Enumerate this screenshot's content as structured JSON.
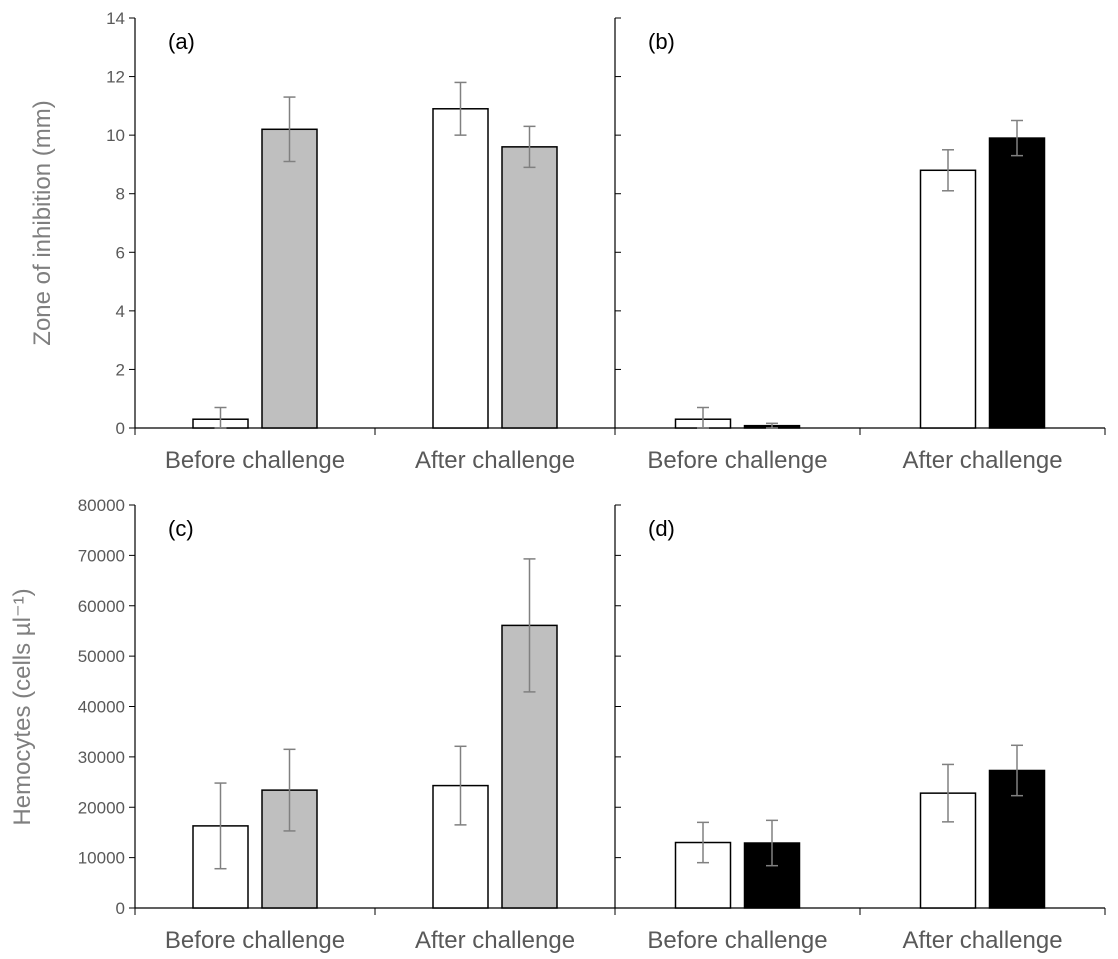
{
  "ylabel_top": "Zone of inhibition (mm)",
  "ylabel_bottom": "Hemocytes (cells µl⁻¹)",
  "chart_data": [
    {
      "panel": "(a)",
      "type": "bar",
      "categories": [
        "Before challenge",
        "After challenge"
      ],
      "ylim": [
        0,
        14
      ],
      "yticks": [
        "0",
        "2",
        "4",
        "6",
        "8",
        "10",
        "12",
        "14"
      ],
      "series": [
        {
          "color": "#ffffff",
          "values": [
            0.3,
            10.9
          ],
          "errors": [
            0.4,
            0.9
          ]
        },
        {
          "color": "#bfbfbf",
          "values": [
            10.2,
            9.6
          ],
          "errors": [
            1.1,
            0.7
          ]
        }
      ]
    },
    {
      "panel": "(b)",
      "type": "bar",
      "categories": [
        "Before challenge",
        "After challenge"
      ],
      "ylim": [
        0,
        14
      ],
      "series": [
        {
          "color": "#ffffff",
          "values": [
            0.3,
            8.8
          ],
          "errors": [
            0.4,
            0.7
          ]
        },
        {
          "color": "#000000",
          "values": [
            0.08,
            9.9
          ],
          "errors": [
            0.08,
            0.6
          ]
        }
      ]
    },
    {
      "panel": "(c)",
      "type": "bar",
      "categories": [
        "Before challenge",
        "After challenge"
      ],
      "ylim": [
        0,
        80000
      ],
      "yticks": [
        "0",
        "10000",
        "20000",
        "30000",
        "40000",
        "50000",
        "60000",
        "70000",
        "80000"
      ],
      "series": [
        {
          "color": "#ffffff",
          "values": [
            16300,
            24300
          ],
          "errors": [
            8500,
            7800
          ]
        },
        {
          "color": "#bfbfbf",
          "values": [
            23400,
            56100
          ],
          "errors": [
            8100,
            13200
          ]
        }
      ]
    },
    {
      "panel": "(d)",
      "type": "bar",
      "categories": [
        "Before challenge",
        "After challenge"
      ],
      "ylim": [
        0,
        80000
      ],
      "series": [
        {
          "color": "#ffffff",
          "values": [
            13000,
            22800
          ],
          "errors": [
            4000,
            5700
          ]
        },
        {
          "color": "#000000",
          "values": [
            12900,
            27300
          ],
          "errors": [
            4500,
            5000
          ]
        }
      ]
    }
  ]
}
